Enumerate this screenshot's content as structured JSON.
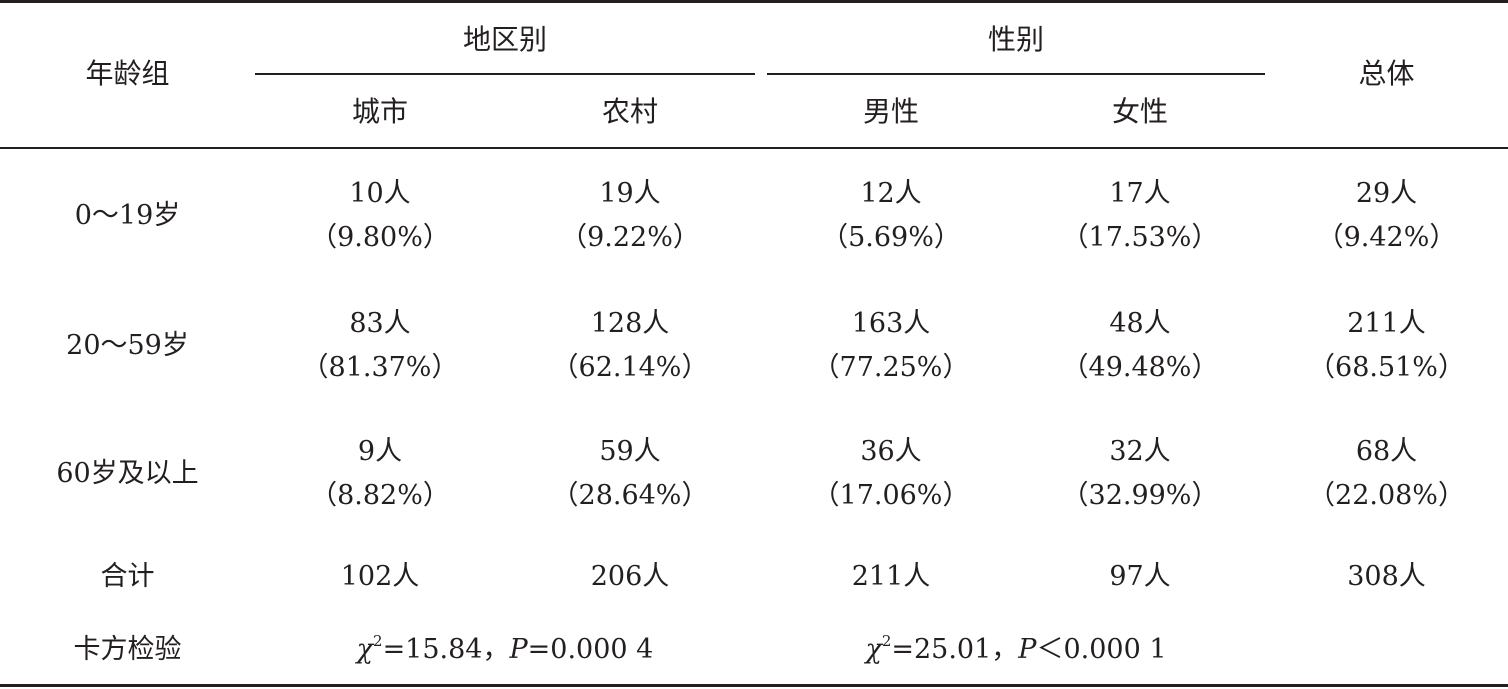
{
  "headers": {
    "age_group": "年龄组",
    "region": "地区别",
    "gender": "性别",
    "total": "总体",
    "city": "城市",
    "rural": "农村",
    "male": "男性",
    "female": "女性"
  },
  "rows": [
    {
      "label": "0～19岁",
      "cells": [
        {
          "count": "10人",
          "pct": "（9.80%）"
        },
        {
          "count": "19人",
          "pct": "（9.22%）"
        },
        {
          "count": "12人",
          "pct": "（5.69%）"
        },
        {
          "count": "17人",
          "pct": "（17.53%）"
        },
        {
          "count": "29人",
          "pct": "（9.42%）"
        }
      ]
    },
    {
      "label": "20～59岁",
      "cells": [
        {
          "count": "83人",
          "pct": "（81.37%）"
        },
        {
          "count": "128人",
          "pct": "（62.14%）"
        },
        {
          "count": "163人",
          "pct": "（77.25%）"
        },
        {
          "count": "48人",
          "pct": "（49.48%）"
        },
        {
          "count": "211人",
          "pct": "（68.51%）"
        }
      ]
    },
    {
      "label": "60岁及以上",
      "cells": [
        {
          "count": "9人",
          "pct": "（8.82%）"
        },
        {
          "count": "59人",
          "pct": "（28.64%）"
        },
        {
          "count": "36人",
          "pct": "（17.06%）"
        },
        {
          "count": "32人",
          "pct": "（32.99%）"
        },
        {
          "count": "68人",
          "pct": "（22.08%）"
        }
      ]
    }
  ],
  "total_row": {
    "label": "合计",
    "cells": [
      "102人",
      "206人",
      "211人",
      "97人",
      "308人"
    ]
  },
  "chi_row": {
    "label": "卡方检验",
    "region": {
      "chi_symbol": "χ",
      "exp": "2",
      "chi_value": "=15.84，",
      "p_symbol": "P",
      "p_value": "=0.000 4"
    },
    "gender": {
      "chi_symbol": "χ",
      "exp": "2",
      "chi_value": "=25.01，",
      "p_symbol": "P",
      "p_value": "＜0.000 1"
    }
  }
}
